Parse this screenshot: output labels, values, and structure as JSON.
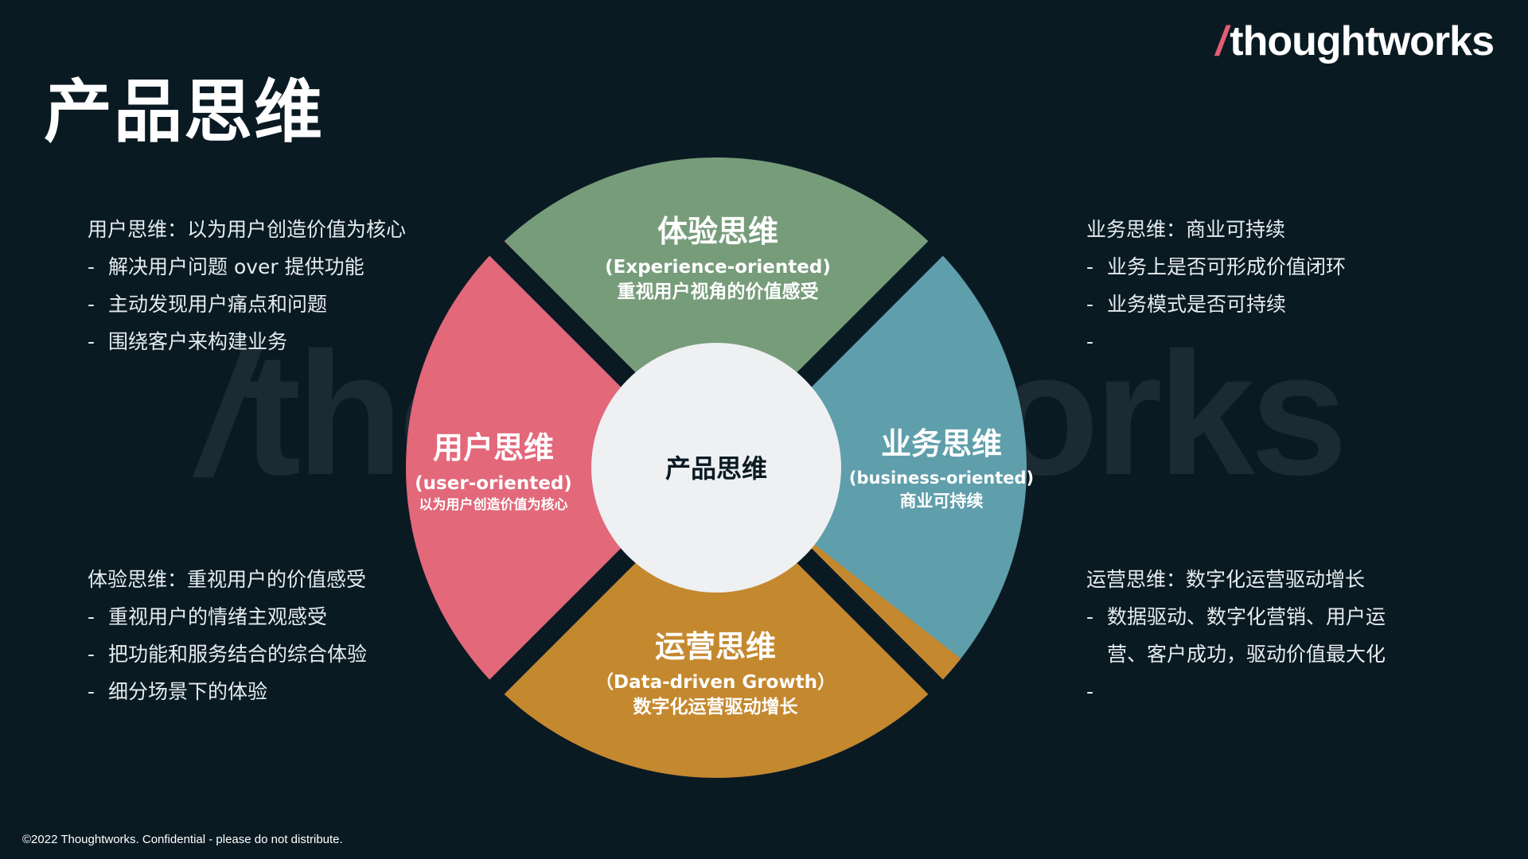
{
  "slide": {
    "title": "产品思维"
  },
  "logo": {
    "slash": "/",
    "name": "thoughtworks"
  },
  "watermark": {
    "slash": "/",
    "text": "thoughtworks"
  },
  "panels": {
    "top_left": {
      "heading": "用户思维：以为用户创造价值为核心",
      "items": [
        "解决用户问题 over 提供功能",
        "主动发现用户痛点和问题",
        "围绕客户来构建业务"
      ]
    },
    "bottom_left": {
      "heading": "体验思维：重视用户的价值感受",
      "items": [
        "重视用户的情绪主观感受",
        "把功能和服务结合的综合体验",
        "细分场景下的体验"
      ]
    },
    "top_right": {
      "heading": "业务思维：商业可持续",
      "items": [
        "业务上是否可形成价值闭环",
        "业务模式是否可持续",
        ""
      ]
    },
    "bottom_right": {
      "heading": "运营思维：数字化运营驱动增长",
      "items": [
        "数据驱动、数字化营销、用户运",
        "营、客户成功，驱动价值最大化",
        ""
      ]
    }
  },
  "wheel": {
    "center_label": "产品思维",
    "segments": {
      "top": {
        "title": "体验思维",
        "en": "(Experience-oriented)",
        "zh": "重视用户视角的价值感受",
        "color": "#779c7a"
      },
      "left": {
        "title": "用户思维",
        "en": "(user-oriented)",
        "zh": "以为用户创造价值为核心",
        "color": "#e2687a"
      },
      "right": {
        "title": "业务思维",
        "en": "(business-oriented)",
        "zh": "商业可持续",
        "color": "#5f9eab"
      },
      "bottom": {
        "title": "运营思维",
        "en": "（Data-driven Growth）",
        "zh": "数字化运营驱动增长",
        "color": "#c4882f"
      }
    },
    "center_color": "#eef0f2"
  },
  "footer": {
    "text": "©2022 Thoughtworks.  Confidential - please do not distribute."
  }
}
